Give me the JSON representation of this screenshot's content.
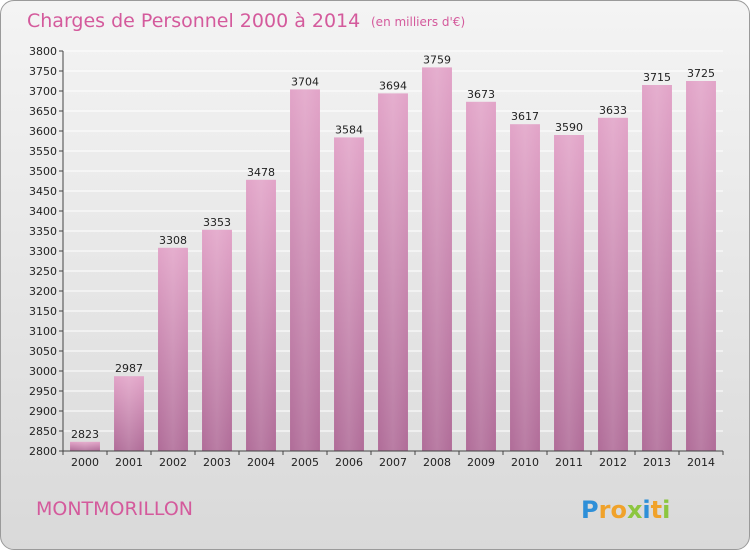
{
  "chart_data": {
    "type": "bar",
    "title": "Charges de Personnel 2000 à 2014",
    "subtitle": "(en milliers d'€)",
    "categories": [
      "2000",
      "2001",
      "2002",
      "2003",
      "2004",
      "2005",
      "2006",
      "2007",
      "2008",
      "2009",
      "2010",
      "2011",
      "2012",
      "2013",
      "2014"
    ],
    "values": [
      2823,
      2987,
      3308,
      3353,
      3478,
      3704,
      3584,
      3694,
      3759,
      3673,
      3617,
      3590,
      3633,
      3715,
      3725
    ],
    "ylim": [
      2800,
      3800
    ],
    "ytick_step": 50,
    "grid": true,
    "bar_color_top": "#e2a4c8",
    "bar_color_bottom": "#b06c98",
    "xlabel": "",
    "ylabel": ""
  },
  "place_name": "MONTMORILLON",
  "logo": {
    "letters": [
      "P",
      "r",
      "o",
      "x",
      "i",
      "t",
      "i"
    ],
    "colors": [
      "#2e8fd8",
      "#f0a22a",
      "#f0a22a",
      "#8cc63f",
      "#2e8fd8",
      "#f0a22a",
      "#8cc63f"
    ]
  },
  "colors": {
    "accent": "#d45a9c",
    "axis": "#444444",
    "grid": "#ffffff"
  }
}
